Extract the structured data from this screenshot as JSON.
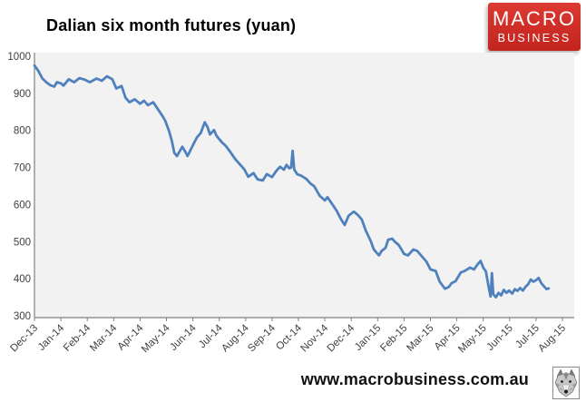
{
  "logo": {
    "line1": "MACRO",
    "line2": "BUSINESS",
    "color_top": "#DC3931",
    "color_bottom": "#C2241E",
    "text_color": "#FFFFFF"
  },
  "footer": {
    "website": "www.macrobusiness.com.au",
    "icon": "wolf-face-icon"
  },
  "chart_data": {
    "type": "line",
    "title": "Dalian six month futures (yuan)",
    "xlabel": "",
    "ylabel": "",
    "x_tick_labels": [
      "Dec-13",
      "Jan-14",
      "Feb-14",
      "Mar-14",
      "Apr-14",
      "May-14",
      "Jun-14",
      "Jul-14",
      "Aug-14",
      "Sep-14",
      "Oct-14",
      "Nov-14",
      "Dec-14",
      "Jan-15",
      "Feb-15",
      "Mar-15",
      "Apr-15",
      "May-15",
      "Jun-15",
      "Jul-15",
      "Aug-15"
    ],
    "y_ticks": [
      300,
      400,
      500,
      600,
      700,
      800,
      900,
      1000
    ],
    "ylim": [
      300,
      1000
    ],
    "grid": false,
    "legend": "none",
    "colors": {
      "line": "#4F81BD",
      "plot_bg": "#F2F2F2",
      "axis": "#808080",
      "tick_label": "#404040",
      "title": "#000000"
    },
    "series": [
      {
        "name": "Dalian six month futures (yuan)",
        "x_unit": "months_since_Dec-2013",
        "points": [
          [
            0,
            975
          ],
          [
            0.15,
            960
          ],
          [
            0.3,
            940
          ],
          [
            0.45,
            930
          ],
          [
            0.6,
            922
          ],
          [
            0.75,
            918
          ],
          [
            0.85,
            930
          ],
          [
            1,
            927
          ],
          [
            1.1,
            921
          ],
          [
            1.3,
            938
          ],
          [
            1.5,
            930
          ],
          [
            1.7,
            941
          ],
          [
            1.9,
            937
          ],
          [
            2.1,
            930
          ],
          [
            2.35,
            940
          ],
          [
            2.55,
            934
          ],
          [
            2.75,
            946
          ],
          [
            2.95,
            938
          ],
          [
            3.1,
            913
          ],
          [
            3.3,
            920
          ],
          [
            3.45,
            888
          ],
          [
            3.6,
            876
          ],
          [
            3.8,
            884
          ],
          [
            4,
            872
          ],
          [
            4.15,
            880
          ],
          [
            4.3,
            868
          ],
          [
            4.5,
            876
          ],
          [
            4.65,
            860
          ],
          [
            4.85,
            839
          ],
          [
            4.95,
            827
          ],
          [
            5.1,
            798
          ],
          [
            5.2,
            773
          ],
          [
            5.3,
            739
          ],
          [
            5.4,
            731
          ],
          [
            5.6,
            756
          ],
          [
            5.7,
            744
          ],
          [
            5.8,
            731
          ],
          [
            6,
            760
          ],
          [
            6.15,
            781
          ],
          [
            6.3,
            793
          ],
          [
            6.45,
            822
          ],
          [
            6.55,
            810
          ],
          [
            6.65,
            789
          ],
          [
            6.8,
            801
          ],
          [
            6.9,
            785
          ],
          [
            7.1,
            768
          ],
          [
            7.25,
            758
          ],
          [
            7.4,
            744
          ],
          [
            7.6,
            723
          ],
          [
            7.75,
            711
          ],
          [
            7.95,
            695
          ],
          [
            8.1,
            675
          ],
          [
            8.3,
            685
          ],
          [
            8.45,
            668
          ],
          [
            8.65,
            665
          ],
          [
            8.8,
            682
          ],
          [
            9,
            674
          ],
          [
            9.15,
            690
          ],
          [
            9.3,
            702
          ],
          [
            9.45,
            694
          ],
          [
            9.55,
            707
          ],
          [
            9.65,
            698
          ],
          [
            9.72,
            700
          ],
          [
            9.78,
            745
          ],
          [
            9.84,
            695
          ],
          [
            9.95,
            682
          ],
          [
            10.1,
            678
          ],
          [
            10.3,
            669
          ],
          [
            10.45,
            657
          ],
          [
            10.6,
            649
          ],
          [
            10.8,
            624
          ],
          [
            11,
            611
          ],
          [
            11.1,
            620
          ],
          [
            11.3,
            599
          ],
          [
            11.45,
            583
          ],
          [
            11.6,
            562
          ],
          [
            11.75,
            545
          ],
          [
            11.9,
            570
          ],
          [
            12.1,
            581
          ],
          [
            12.25,
            572
          ],
          [
            12.4,
            560
          ],
          [
            12.55,
            530
          ],
          [
            12.65,
            515
          ],
          [
            12.75,
            500
          ],
          [
            12.85,
            480
          ],
          [
            12.95,
            471
          ],
          [
            13.05,
            463
          ],
          [
            13.15,
            475
          ],
          [
            13.3,
            483
          ],
          [
            13.4,
            505
          ],
          [
            13.55,
            508
          ],
          [
            13.65,
            500
          ],
          [
            13.8,
            491
          ],
          [
            14,
            467
          ],
          [
            14.15,
            463
          ],
          [
            14.35,
            479
          ],
          [
            14.5,
            475
          ],
          [
            14.7,
            458
          ],
          [
            14.85,
            446
          ],
          [
            15,
            425
          ],
          [
            15.2,
            421
          ],
          [
            15.35,
            392
          ],
          [
            15.55,
            373
          ],
          [
            15.7,
            378
          ],
          [
            15.8,
            388
          ],
          [
            15.95,
            393
          ],
          [
            16.15,
            417
          ],
          [
            16.3,
            421
          ],
          [
            16.5,
            430
          ],
          [
            16.65,
            425
          ],
          [
            16.8,
            440
          ],
          [
            16.9,
            448
          ],
          [
            17,
            430
          ],
          [
            17.1,
            420
          ],
          [
            17.2,
            380
          ],
          [
            17.28,
            352
          ],
          [
            17.33,
            415
          ],
          [
            17.38,
            358
          ],
          [
            17.48,
            350
          ],
          [
            17.58,
            362
          ],
          [
            17.68,
            355
          ],
          [
            17.78,
            370
          ],
          [
            17.88,
            362
          ],
          [
            17.98,
            368
          ],
          [
            18.1,
            360
          ],
          [
            18.2,
            372
          ],
          [
            18.3,
            367
          ],
          [
            18.4,
            375
          ],
          [
            18.5,
            368
          ],
          [
            18.6,
            378
          ],
          [
            18.7,
            385
          ],
          [
            18.8,
            398
          ],
          [
            18.9,
            392
          ],
          [
            19,
            396
          ],
          [
            19.1,
            402
          ],
          [
            19.2,
            388
          ],
          [
            19.32,
            378
          ],
          [
            19.4,
            372
          ],
          [
            19.48,
            374
          ]
        ]
      }
    ]
  }
}
